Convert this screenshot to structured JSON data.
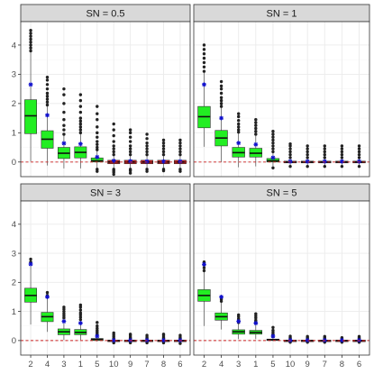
{
  "chart_data": {
    "type": "boxplot",
    "layout": "facet-grid-2x2",
    "categories": [
      "2",
      "4",
      "3",
      "1",
      "5",
      "10",
      "9",
      "7",
      "8",
      "6"
    ],
    "ylim": [
      -0.5,
      4.8
    ],
    "yticks": [
      0,
      1,
      2,
      3,
      4
    ],
    "reference_line": {
      "y": 0,
      "style": "dashed",
      "color": "#cc2222"
    },
    "colors": {
      "fill_positive": "#22ee22",
      "fill_zero": "#dd2222",
      "mean_marker": "#1111cc",
      "outlier": "#222222",
      "strip": "#d9d9d9",
      "grid": "#ebebeb"
    },
    "panels": [
      {
        "label": "SN =  0.5",
        "boxes": [
          {
            "q1": 0.97,
            "median": 1.58,
            "q3": 2.13,
            "lo": 0.02,
            "hi": 3.75,
            "mean": 2.65,
            "out_lo": [],
            "out_hi": [
              3.8,
              3.9,
              4.0,
              4.1,
              4.2,
              4.3,
              4.4,
              4.5
            ]
          },
          {
            "q1": 0.47,
            "median": 0.78,
            "q3": 1.07,
            "lo": -0.12,
            "hi": 1.9,
            "mean": 1.6,
            "out_lo": [],
            "out_hi": [
              1.95,
              2.05,
              2.15,
              2.25,
              2.35,
              2.5,
              2.65,
              2.8,
              2.9
            ]
          },
          {
            "q1": 0.12,
            "median": 0.3,
            "q3": 0.5,
            "lo": -0.22,
            "hi": 0.92,
            "mean": 0.64,
            "out_lo": [],
            "out_hi": [
              0.95,
              1.1,
              1.25,
              1.45,
              1.7,
              2.0,
              2.3,
              2.5
            ]
          },
          {
            "q1": 0.14,
            "median": 0.33,
            "q3": 0.52,
            "lo": -0.22,
            "hi": 0.95,
            "mean": 0.62,
            "out_lo": [],
            "out_hi": [
              1.0,
              1.1,
              1.2,
              1.3,
              1.4,
              1.5,
              1.7,
              1.9,
              2.1,
              2.3
            ]
          },
          {
            "q1": 0.0,
            "median": 0.04,
            "q3": 0.14,
            "lo": -0.22,
            "hi": 0.38,
            "mean": 0.17,
            "out_lo": [
              -0.25,
              -0.32
            ],
            "out_hi": [
              0.42,
              0.5,
              0.6,
              0.7,
              0.85,
              1.0,
              1.2,
              1.45,
              1.65,
              1.9
            ]
          },
          {
            "q1": -0.06,
            "median": 0.0,
            "q3": 0.06,
            "lo": -0.2,
            "hi": 0.2,
            "mean": 0.04,
            "out_lo": [
              -0.25,
              -0.3,
              -0.35,
              -0.42
            ],
            "out_hi": [
              0.25,
              0.35,
              0.45,
              0.55,
              0.7,
              0.9,
              1.1,
              1.3
            ]
          },
          {
            "q1": -0.06,
            "median": 0.0,
            "q3": 0.06,
            "lo": -0.2,
            "hi": 0.2,
            "mean": 0.03,
            "out_lo": [
              -0.25,
              -0.3,
              -0.38
            ],
            "out_hi": [
              0.25,
              0.35,
              0.45,
              0.55,
              0.7,
              0.85,
              1.0,
              1.1
            ]
          },
          {
            "q1": -0.06,
            "median": 0.0,
            "q3": 0.06,
            "lo": -0.2,
            "hi": 0.2,
            "mean": 0.02,
            "out_lo": [
              -0.25,
              -0.32
            ],
            "out_hi": [
              0.25,
              0.35,
              0.45,
              0.55,
              0.65,
              0.8,
              0.95
            ]
          },
          {
            "q1": -0.06,
            "median": 0.0,
            "q3": 0.06,
            "lo": -0.2,
            "hi": 0.2,
            "mean": 0.02,
            "out_lo": [
              -0.25,
              -0.3
            ],
            "out_hi": [
              0.25,
              0.35,
              0.45,
              0.55,
              0.65,
              0.75
            ]
          },
          {
            "q1": -0.06,
            "median": 0.0,
            "q3": 0.06,
            "lo": -0.2,
            "hi": 0.2,
            "mean": 0.02,
            "out_lo": [
              -0.25,
              -0.32
            ],
            "out_hi": [
              0.25,
              0.35,
              0.45,
              0.55,
              0.65,
              0.75
            ]
          }
        ]
      },
      {
        "label": "SN =  1",
        "boxes": [
          {
            "q1": 1.17,
            "median": 1.55,
            "q3": 1.9,
            "lo": 0.52,
            "hi": 3.05,
            "mean": 2.65,
            "out_lo": [],
            "out_hi": [
              3.1,
              3.25,
              3.4,
              3.55,
              3.7,
              3.85,
              4.0
            ]
          },
          {
            "q1": 0.55,
            "median": 0.82,
            "q3": 1.08,
            "lo": 0.0,
            "hi": 1.85,
            "mean": 1.5,
            "out_lo": [],
            "out_hi": [
              1.9,
              2.0,
              2.1,
              2.2,
              2.35,
              2.5,
              2.6,
              2.75
            ]
          },
          {
            "q1": 0.17,
            "median": 0.32,
            "q3": 0.5,
            "lo": -0.18,
            "hi": 0.98,
            "mean": 0.65,
            "out_lo": [],
            "out_hi": [
              1.02,
              1.1,
              1.2,
              1.3,
              1.42,
              1.55,
              1.65
            ]
          },
          {
            "q1": 0.17,
            "median": 0.3,
            "q3": 0.47,
            "lo": -0.15,
            "hi": 0.9,
            "mean": 0.6,
            "out_lo": [],
            "out_hi": [
              0.95,
              1.05,
              1.15,
              1.25,
              1.35,
              1.45
            ]
          },
          {
            "q1": 0.0,
            "median": 0.04,
            "q3": 0.12,
            "lo": -0.15,
            "hi": 0.3,
            "mean": 0.15,
            "out_lo": [
              -0.2
            ],
            "out_hi": [
              0.35,
              0.45,
              0.55,
              0.65,
              0.75,
              0.85,
              0.95,
              1.05
            ]
          },
          {
            "q1": -0.03,
            "median": 0.0,
            "q3": 0.03,
            "lo": -0.1,
            "hi": 0.1,
            "mean": 0.02,
            "out_lo": [
              -0.15
            ],
            "out_hi": [
              0.15,
              0.25,
              0.35,
              0.45,
              0.55,
              0.62
            ]
          },
          {
            "q1": -0.03,
            "median": 0.0,
            "q3": 0.03,
            "lo": -0.1,
            "hi": 0.1,
            "mean": 0.02,
            "out_lo": [
              -0.15
            ],
            "out_hi": [
              0.15,
              0.25,
              0.35,
              0.45,
              0.55
            ]
          },
          {
            "q1": -0.03,
            "median": 0.0,
            "q3": 0.03,
            "lo": -0.1,
            "hi": 0.1,
            "mean": 0.02,
            "out_lo": [
              -0.15
            ],
            "out_hi": [
              0.15,
              0.25,
              0.35,
              0.45,
              0.55
            ]
          },
          {
            "q1": -0.03,
            "median": 0.0,
            "q3": 0.03,
            "lo": -0.1,
            "hi": 0.1,
            "mean": 0.02,
            "out_lo": [
              -0.15
            ],
            "out_hi": [
              0.15,
              0.25,
              0.35,
              0.45,
              0.55
            ]
          },
          {
            "q1": -0.03,
            "median": 0.0,
            "q3": 0.03,
            "lo": -0.1,
            "hi": 0.1,
            "mean": 0.02,
            "out_lo": [
              -0.15
            ],
            "out_hi": [
              0.15,
              0.25,
              0.35,
              0.45,
              0.55
            ]
          }
        ]
      },
      {
        "label": "SN =  3",
        "boxes": [
          {
            "q1": 1.32,
            "median": 1.55,
            "q3": 1.8,
            "lo": 0.55,
            "hi": 2.6,
            "mean": 2.63,
            "out_lo": [],
            "out_hi": [
              2.7,
              2.8
            ]
          },
          {
            "q1": 0.65,
            "median": 0.82,
            "q3": 0.97,
            "lo": 0.3,
            "hi": 1.45,
            "mean": 1.5,
            "out_lo": [],
            "out_hi": [
              1.5,
              1.55,
              1.65
            ]
          },
          {
            "q1": 0.2,
            "median": 0.3,
            "q3": 0.4,
            "lo": 0.02,
            "hi": 0.72,
            "mean": 0.66,
            "out_lo": [],
            "out_hi": [
              0.78,
              0.85,
              0.92,
              1.0,
              1.08,
              1.15
            ]
          },
          {
            "q1": 0.2,
            "median": 0.28,
            "q3": 0.38,
            "lo": 0.02,
            "hi": 0.68,
            "mean": 0.6,
            "out_lo": [],
            "out_hi": [
              0.72,
              0.8,
              0.88,
              0.95,
              1.05,
              1.15,
              1.22
            ]
          },
          {
            "q1": 0.0,
            "median": 0.04,
            "q3": 0.07,
            "lo": -0.03,
            "hi": 0.16,
            "mean": 0.15,
            "out_lo": [],
            "out_hi": [
              0.2,
              0.25,
              0.3,
              0.35,
              0.42,
              0.5,
              0.62
            ]
          },
          {
            "q1": -0.01,
            "median": 0.0,
            "q3": 0.01,
            "lo": -0.04,
            "hi": 0.04,
            "mean": 0.01,
            "out_lo": [
              -0.08
            ],
            "out_hi": [
              0.08,
              0.14,
              0.2,
              0.26
            ]
          },
          {
            "q1": -0.01,
            "median": 0.0,
            "q3": 0.01,
            "lo": -0.04,
            "hi": 0.04,
            "mean": 0.01,
            "out_lo": [
              -0.08
            ],
            "out_hi": [
              0.08,
              0.12,
              0.18,
              0.22
            ]
          },
          {
            "q1": -0.01,
            "median": 0.0,
            "q3": 0.01,
            "lo": -0.04,
            "hi": 0.04,
            "mean": 0.01,
            "out_lo": [
              -0.08
            ],
            "out_hi": [
              0.08,
              0.12,
              0.18
            ]
          },
          {
            "q1": -0.01,
            "median": 0.0,
            "q3": 0.01,
            "lo": -0.04,
            "hi": 0.04,
            "mean": 0.01,
            "out_lo": [
              -0.08
            ],
            "out_hi": [
              0.08,
              0.12,
              0.18,
              0.22
            ]
          },
          {
            "q1": -0.01,
            "median": 0.0,
            "q3": 0.01,
            "lo": -0.04,
            "hi": 0.04,
            "mean": 0.01,
            "out_lo": [
              -0.1
            ],
            "out_hi": [
              0.08,
              0.12,
              0.18
            ]
          }
        ]
      },
      {
        "label": "SN =  5",
        "boxes": [
          {
            "q1": 1.35,
            "median": 1.55,
            "q3": 1.75,
            "lo": 0.5,
            "hi": 2.35,
            "mean": 2.62,
            "out_lo": [],
            "out_hi": [
              2.4,
              2.5,
              2.6,
              2.7
            ]
          },
          {
            "q1": 0.7,
            "median": 0.82,
            "q3": 0.95,
            "lo": 0.38,
            "hi": 1.3,
            "mean": 1.5,
            "out_lo": [],
            "out_hi": [
              1.35,
              1.42
            ]
          },
          {
            "q1": 0.22,
            "median": 0.3,
            "q3": 0.37,
            "lo": 0.05,
            "hi": 0.58,
            "mean": 0.66,
            "out_lo": [],
            "out_hi": [
              0.62,
              0.68,
              0.75,
              0.82,
              0.88
            ]
          },
          {
            "q1": 0.22,
            "median": 0.28,
            "q3": 0.35,
            "lo": 0.05,
            "hi": 0.55,
            "mean": 0.6,
            "out_lo": [],
            "out_hi": [
              0.6,
              0.65,
              0.7,
              0.78,
              0.85,
              0.92
            ]
          },
          {
            "q1": 0.01,
            "median": 0.03,
            "q3": 0.05,
            "lo": -0.02,
            "hi": 0.1,
            "mean": 0.15,
            "out_lo": [],
            "out_hi": [
              0.14,
              0.18,
              0.22,
              0.28,
              0.35,
              0.45
            ]
          },
          {
            "q1": -0.01,
            "median": 0.0,
            "q3": 0.01,
            "lo": -0.03,
            "hi": 0.03,
            "mean": 0.01,
            "out_lo": [
              -0.06
            ],
            "out_hi": [
              0.06,
              0.1,
              0.15
            ]
          },
          {
            "q1": -0.01,
            "median": 0.0,
            "q3": 0.01,
            "lo": -0.03,
            "hi": 0.03,
            "mean": 0.01,
            "out_lo": [
              -0.06
            ],
            "out_hi": [
              0.06,
              0.1,
              0.14
            ]
          },
          {
            "q1": -0.01,
            "median": 0.0,
            "q3": 0.01,
            "lo": -0.03,
            "hi": 0.03,
            "mean": 0.01,
            "out_lo": [
              -0.06
            ],
            "out_hi": [
              0.06,
              0.1,
              0.14
            ]
          },
          {
            "q1": -0.01,
            "median": 0.0,
            "q3": 0.01,
            "lo": -0.03,
            "hi": 0.03,
            "mean": 0.01,
            "out_lo": [
              -0.06
            ],
            "out_hi": [
              0.06,
              0.1
            ]
          },
          {
            "q1": -0.01,
            "median": 0.0,
            "q3": 0.01,
            "lo": -0.03,
            "hi": 0.03,
            "mean": 0.01,
            "out_lo": [
              -0.06
            ],
            "out_hi": [
              0.06,
              0.1,
              0.14
            ]
          }
        ]
      }
    ]
  }
}
